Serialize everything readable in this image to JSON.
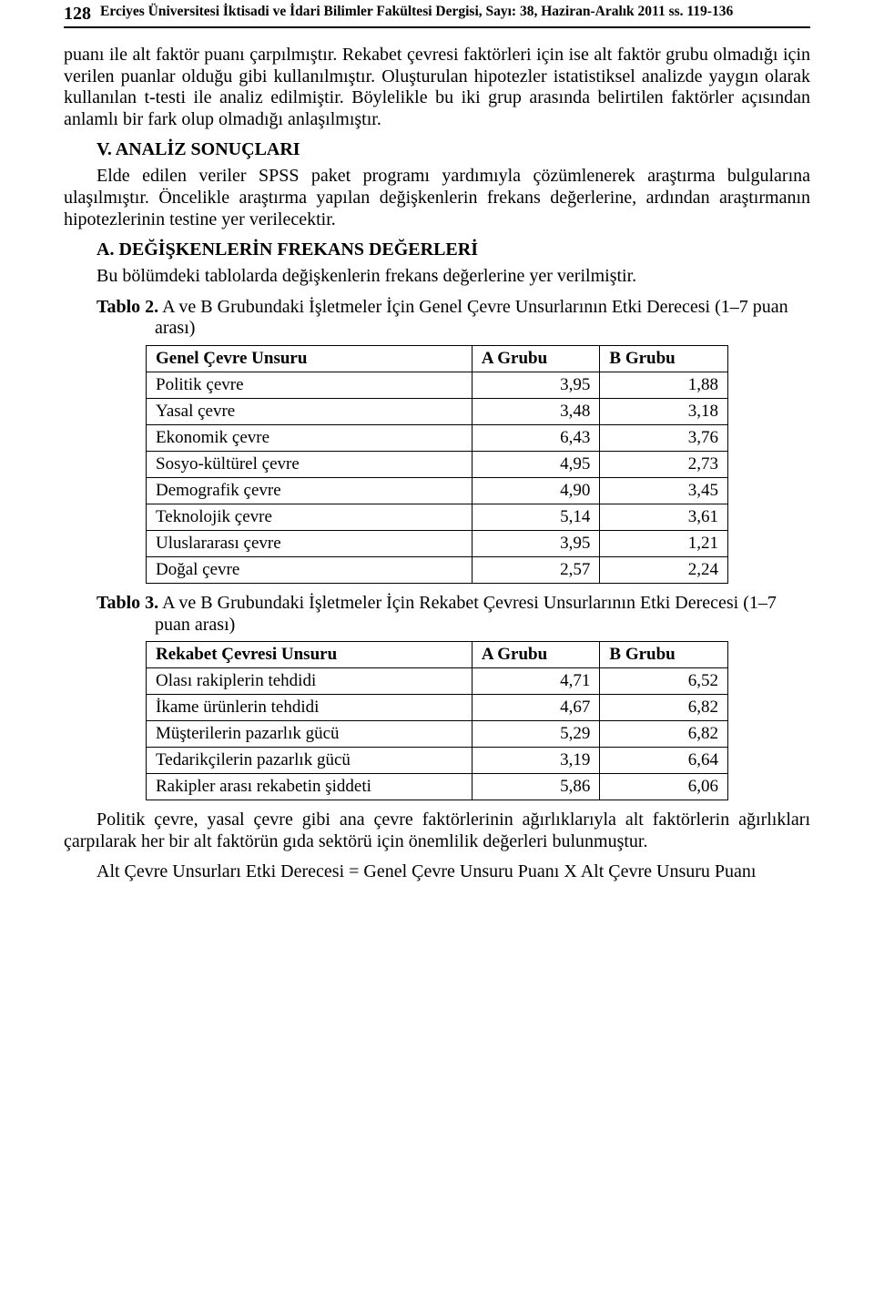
{
  "header": {
    "page_number": "128",
    "journal": "Erciyes Üniversitesi İktisadi ve İdari Bilimler Fakültesi Dergisi, Sayı: 38, Haziran-Aralık 2011 ss. 119-136"
  },
  "paragraphs": {
    "p1": "puanı ile alt faktör puanı çarpılmıştır. Rekabet çevresi faktörleri için ise alt faktör grubu olmadığı için verilen puanlar olduğu gibi kullanılmıştır. Oluşturulan hipotezler istatistiksel analizde yaygın olarak kullanılan t-testi ile analiz edilmiştir. Böylelikle bu iki grup arasında belirtilen faktörler açısından anlamlı bir fark olup olmadığı anlaşılmıştır.",
    "h1": "V. ANALİZ SONUÇLARI",
    "p2": "Elde edilen veriler SPSS paket programı yardımıyla çözümlenerek araştırma bulgularına ulaşılmıştır. Öncelikle araştırma yapılan değişkenlerin frekans değerlerine, ardından araştırmanın hipotezlerinin testine yer verilecektir.",
    "h2": "A. DEĞİŞKENLERİN FREKANS DEĞERLERİ",
    "p3": "Bu bölümdeki tablolarda değişkenlerin frekans değerlerine yer verilmiştir.",
    "t2_lead": "Tablo 2.",
    "t2_rest": " A ve B Grubundaki İşletmeler İçin Genel Çevre Unsurlarının Etki Derecesi (1–7 puan arası)",
    "t3_lead": "Tablo 3.",
    "t3_rest": " A ve B Grubundaki İşletmeler İçin Rekabet Çevresi Unsurlarının Etki Derecesi (1–7 puan arası)",
    "p4": "Politik çevre, yasal çevre gibi ana çevre faktörlerinin ağırlıklarıyla alt faktörlerin ağırlıkları çarpılarak her bir alt faktörün gıda sektörü için önemlilik değerleri bulunmuştur.",
    "p5": "Alt Çevre Unsurları Etki Derecesi = Genel Çevre Unsuru Puanı X Alt Çevre Unsuru Puanı"
  },
  "table2": {
    "columns": [
      "Genel Çevre Unsuru",
      "A Grubu",
      "B Grubu"
    ],
    "rows": [
      [
        "Politik çevre",
        "3,95",
        "1,88"
      ],
      [
        "Yasal çevre",
        "3,48",
        "3,18"
      ],
      [
        "Ekonomik çevre",
        "6,43",
        "3,76"
      ],
      [
        "Sosyo-kültürel çevre",
        "4,95",
        "2,73"
      ],
      [
        "Demografik çevre",
        "4,90",
        "3,45"
      ],
      [
        "Teknolojik çevre",
        "5,14",
        "3,61"
      ],
      [
        "Uluslararası çevre",
        "3,95",
        "1,21"
      ],
      [
        "Doğal çevre",
        "2,57",
        "2,24"
      ]
    ]
  },
  "table3": {
    "columns": [
      "Rekabet Çevresi Unsuru",
      "A Grubu",
      "B Grubu"
    ],
    "rows": [
      [
        "Olası rakiplerin tehdidi",
        "4,71",
        "6,52"
      ],
      [
        "İkame ürünlerin tehdidi",
        "4,67",
        "6,82"
      ],
      [
        "Müşterilerin pazarlık gücü",
        "5,29",
        "6,82"
      ],
      [
        "Tedarikçilerin pazarlık gücü",
        "3,19",
        "6,64"
      ],
      [
        "Rakipler arası rekabetin şiddeti",
        "5,86",
        "6,06"
      ]
    ]
  }
}
